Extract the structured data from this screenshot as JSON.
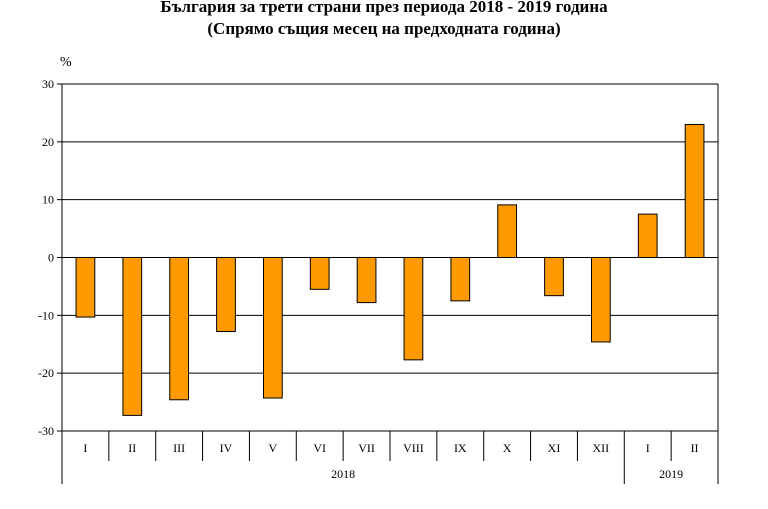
{
  "chart_data": {
    "type": "bar",
    "title": "България за трети страни през периода 2018 - 2019 година",
    "subtitle": "(Спрямо същия месец на предходната година)",
    "unit": "%",
    "categories": [
      "I",
      "II",
      "III",
      "IV",
      "V",
      "VI",
      "VII",
      "VIII",
      "IX",
      "X",
      "XI",
      "XII",
      "I",
      "II"
    ],
    "groups": [
      {
        "label": "2018",
        "count": 12
      },
      {
        "label": "2019",
        "count": 2
      }
    ],
    "values": [
      -10.3,
      -27.3,
      -24.6,
      -12.8,
      -24.3,
      -5.5,
      -7.8,
      -17.7,
      -7.5,
      9.1,
      -6.6,
      -14.6,
      7.5,
      23.0
    ],
    "ylim": [
      -30,
      30
    ],
    "yticks": [
      30,
      20,
      10,
      0,
      -10,
      -20,
      -30
    ],
    "grid": true,
    "colors": {
      "bar": "#FF9900",
      "bar_border": "#000000",
      "grid": "#000000"
    }
  }
}
